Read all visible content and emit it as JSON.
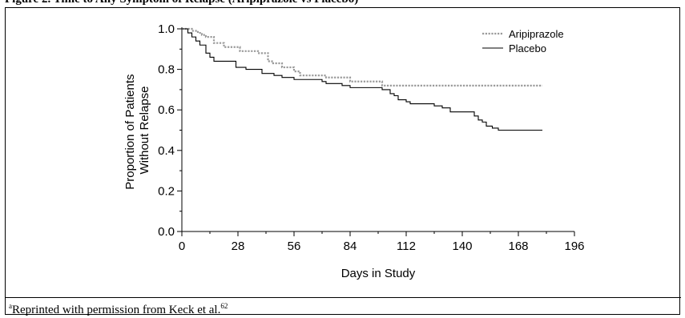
{
  "caption": "Figure 2. Time to Any Symptom of Relapse (Aripiprazole vs Placebo)",
  "footnote": {
    "letter": "a",
    "text": "Reprinted with permission from Keck et al.",
    "ref": "62"
  },
  "chart_data": {
    "type": "line",
    "xlabel": "Days in Study",
    "ylabel_lines": [
      "Proportion of Patients",
      "Without Relapse"
    ],
    "xlim": [
      0,
      196
    ],
    "ylim": [
      0,
      1.0
    ],
    "x_ticks": [
      0,
      28,
      56,
      84,
      112,
      140,
      168,
      196
    ],
    "y_ticks": [
      "0.0",
      "0.2",
      "0.4",
      "0.6",
      "0.8",
      "1.0"
    ],
    "y_tick_values": [
      0,
      0.2,
      0.4,
      0.6,
      0.8,
      1.0
    ],
    "grid": false,
    "legend_position": "top-right",
    "series": [
      {
        "name": "Aripiprazole",
        "style": "dotted",
        "color": "#9a9a9a",
        "points": [
          [
            0,
            1.0
          ],
          [
            5,
            0.99
          ],
          [
            8,
            0.98
          ],
          [
            10,
            0.97
          ],
          [
            12,
            0.96
          ],
          [
            16,
            0.93
          ],
          [
            21,
            0.91
          ],
          [
            29,
            0.89
          ],
          [
            38,
            0.88
          ],
          [
            43,
            0.84
          ],
          [
            45,
            0.83
          ],
          [
            50,
            0.81
          ],
          [
            56,
            0.79
          ],
          [
            59,
            0.77
          ],
          [
            72,
            0.76
          ],
          [
            84,
            0.74
          ],
          [
            100,
            0.72
          ],
          [
            180,
            0.72
          ]
        ]
      },
      {
        "name": "Placebo",
        "style": "solid",
        "color": "#000000",
        "points": [
          [
            0,
            1.0
          ],
          [
            3,
            0.98
          ],
          [
            5,
            0.96
          ],
          [
            7,
            0.94
          ],
          [
            9,
            0.92
          ],
          [
            12,
            0.88
          ],
          [
            14,
            0.86
          ],
          [
            16,
            0.84
          ],
          [
            27,
            0.81
          ],
          [
            32,
            0.8
          ],
          [
            40,
            0.78
          ],
          [
            46,
            0.77
          ],
          [
            50,
            0.76
          ],
          [
            56,
            0.75
          ],
          [
            70,
            0.74
          ],
          [
            72,
            0.73
          ],
          [
            80,
            0.72
          ],
          [
            84,
            0.71
          ],
          [
            100,
            0.7
          ],
          [
            104,
            0.68
          ],
          [
            106,
            0.67
          ],
          [
            108,
            0.65
          ],
          [
            112,
            0.64
          ],
          [
            114,
            0.63
          ],
          [
            126,
            0.62
          ],
          [
            130,
            0.61
          ],
          [
            134,
            0.59
          ],
          [
            146,
            0.57
          ],
          [
            148,
            0.55
          ],
          [
            150,
            0.54
          ],
          [
            152,
            0.52
          ],
          [
            155,
            0.51
          ],
          [
            158,
            0.5
          ],
          [
            180,
            0.5
          ]
        ]
      }
    ]
  }
}
